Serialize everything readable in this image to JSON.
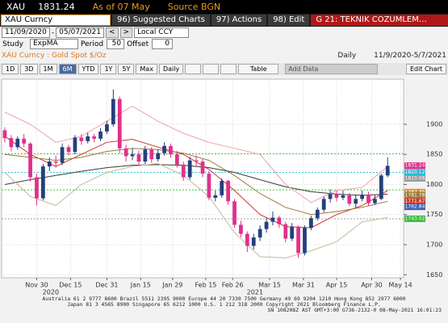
{
  "header": {
    "ticker": "XAU",
    "price": "1831.24",
    "as_of": "As of 07 May",
    "source": "Source BGN"
  },
  "toolbar": {
    "security": "XAU Curncy",
    "buttons": [
      "96) Suggested Charts",
      "97) Actions",
      "98) Edit"
    ],
    "page": "G 21: TEKNIK COZUMLEM…"
  },
  "controls": {
    "start": "11/09/2020",
    "dash": "-",
    "end": "05/07/2021",
    "prev": "<",
    "next": ">",
    "currency": "Local CCY",
    "study_label": "Study",
    "study": "ExpMA",
    "period_label": "Period",
    "period": "50",
    "offset_label": "Offset",
    "offset": "0"
  },
  "info": {
    "name": "XAU Curncy : Gold Spot  $/Oz",
    "frequency": "Daily",
    "range": "11/9/2020-5/7/2021"
  },
  "range_buttons": [
    "1D",
    "3D",
    "1M",
    "6M",
    "YTD",
    "1Y",
    "5Y",
    "Max",
    "Daily"
  ],
  "actions": {
    "table": "Table",
    "add_data": "Add Data",
    "edit_chart": "Edit Chart"
  },
  "chart_data": {
    "type": "candlestick",
    "open": [
      1890,
      1877,
      1862,
      1876,
      1868,
      1812,
      1777,
      1830,
      1838,
      1836,
      1862,
      1854,
      1878,
      1872,
      1880,
      1876,
      1888,
      1900,
      1942,
      1860,
      1847,
      1850,
      1838,
      1858,
      1842,
      1852,
      1864,
      1850,
      1833,
      1812,
      1840,
      1838,
      1818,
      1778,
      1782,
      1806,
      1772,
      1733,
      1718,
      1698,
      1712,
      1726,
      1738,
      1745,
      1734,
      1710,
      1730,
      1686,
      1728,
      1744,
      1758,
      1776,
      1784,
      1778,
      1782,
      1768,
      1776,
      1783,
      1769,
      1776,
      1815
    ],
    "high": [
      1895,
      1882,
      1880,
      1884,
      1870,
      1818,
      1834,
      1845,
      1848,
      1868,
      1866,
      1882,
      1884,
      1886,
      1884,
      1894,
      1906,
      1958,
      1946,
      1866,
      1860,
      1856,
      1864,
      1862,
      1858,
      1870,
      1868,
      1856,
      1838,
      1846,
      1848,
      1842,
      1822,
      1790,
      1810,
      1808,
      1776,
      1740,
      1722,
      1718,
      1732,
      1744,
      1755,
      1748,
      1738,
      1736,
      1732,
      1732,
      1748,
      1762,
      1780,
      1792,
      1790,
      1790,
      1786,
      1782,
      1790,
      1788,
      1782,
      1818,
      1845
    ],
    "low": [
      1870,
      1855,
      1858,
      1862,
      1805,
      1765,
      1774,
      1822,
      1828,
      1832,
      1848,
      1850,
      1866,
      1868,
      1870,
      1872,
      1884,
      1896,
      1852,
      1838,
      1840,
      1832,
      1834,
      1836,
      1838,
      1848,
      1844,
      1828,
      1806,
      1808,
      1830,
      1812,
      1774,
      1772,
      1778,
      1766,
      1728,
      1712,
      1688,
      1692,
      1706,
      1720,
      1732,
      1728,
      1704,
      1706,
      1678,
      1682,
      1724,
      1740,
      1754,
      1770,
      1772,
      1774,
      1764,
      1762,
      1772,
      1764,
      1766,
      1774,
      1812
    ],
    "close": [
      1877,
      1862,
      1876,
      1868,
      1812,
      1777,
      1830,
      1838,
      1836,
      1862,
      1854,
      1878,
      1872,
      1880,
      1876,
      1888,
      1900,
      1942,
      1860,
      1847,
      1850,
      1838,
      1858,
      1842,
      1852,
      1864,
      1850,
      1833,
      1812,
      1840,
      1838,
      1818,
      1778,
      1782,
      1806,
      1772,
      1733,
      1718,
      1698,
      1712,
      1726,
      1738,
      1745,
      1734,
      1710,
      1730,
      1686,
      1728,
      1744,
      1758,
      1776,
      1784,
      1778,
      1782,
      1768,
      1776,
      1783,
      1769,
      1776,
      1815,
      1831
    ],
    "up_color": "#24407c",
    "down_color": "#e0308c",
    "line_x": [
      0,
      4,
      8,
      12,
      16,
      20,
      24,
      28,
      32,
      36,
      40,
      44,
      48,
      52,
      56,
      60
    ],
    "lines": [
      {
        "color": "#d0342c",
        "values": [
          1880,
          1850,
          1830,
          1850,
          1870,
          1875,
          1862,
          1850,
          1825,
          1790,
          1750,
          1730,
          1728,
          1750,
          1765,
          1790
        ]
      },
      {
        "color": "#9a7a3c",
        "values": [
          1850,
          1845,
          1840,
          1845,
          1855,
          1860,
          1858,
          1852,
          1840,
          1815,
          1785,
          1762,
          1750,
          1755,
          1762,
          1772
        ]
      },
      {
        "color": "#3a3a3a",
        "values": [
          1800,
          1808,
          1815,
          1822,
          1828,
          1832,
          1833,
          1832,
          1828,
          1820,
          1808,
          1796,
          1788,
          1784,
          1782,
          1784
        ]
      },
      {
        "color": "#f0a0a8",
        "values": [
          1920,
          1900,
          1870,
          1880,
          1905,
          1930,
          1905,
          1885,
          1870,
          1860,
          1850,
          1800,
          1770,
          1790,
          1795,
          1830
        ]
      },
      {
        "color": "#c8b89a",
        "values": [
          1820,
          1780,
          1765,
          1800,
          1820,
          1830,
          1835,
          1815,
          1780,
          1720,
          1680,
          1678,
          1690,
          1705,
          1738,
          1745
        ]
      }
    ],
    "levels": {
      "values": [
        1851,
        1820,
        1791,
        1743
      ],
      "colors": [
        "#3cc83c",
        "#2cc8d8",
        "#3cc83c",
        "#a0a0a0"
      ]
    },
    "price_tags": {
      "values": [
        1831.24,
        1820.12,
        1810.06,
        1787.35,
        1781.78,
        1771.67,
        1762.84,
        1743.02
      ],
      "colors": [
        "#e0308c",
        "#2cb8d0",
        "#9a9a9a",
        "#e08a20",
        "#9a7a3c",
        "#d0342c",
        "#4060b0",
        "#3cb83c"
      ]
    },
    "xlim": [
      -0.5,
      62.5
    ],
    "xticks": [
      {
        "value": 5,
        "label": "Nov 30"
      },
      {
        "value": 10.3,
        "label": "Dec 15"
      },
      {
        "value": 16,
        "label": "Dec 31"
      },
      {
        "value": 21.3,
        "label": "Jan 15"
      },
      {
        "value": 26.3,
        "label": "Jan 29"
      },
      {
        "value": 31.5,
        "label": "Feb 15"
      },
      {
        "value": 35.7,
        "label": "Feb 26"
      },
      {
        "value": 41.5,
        "label": "Mar 15"
      },
      {
        "value": 46.8,
        "label": "Mar 31"
      },
      {
        "value": 52,
        "label": "Apr 15"
      },
      {
        "value": 57.5,
        "label": "Apr 30"
      },
      {
        "value": 62,
        "label": "May 14"
      }
    ],
    "year_labels": [
      {
        "value": 7.2,
        "label": "2020"
      },
      {
        "value": 39.2,
        "label": "2021"
      }
    ],
    "ylim": [
      1645,
      1975
    ],
    "yticks": [
      1650,
      1700,
      1750,
      1800,
      1850,
      1900
    ],
    "grid": true
  },
  "footer": [
    "Australia 61 2 9777 8600 Brazil 5511 2395 9000 Europe 44 20 7330 7500 Germany 49 69 9204 1210 Hong Kong 852 2977 6000",
    "Japan 81 3 4565 8900 Singapore 65 6212 1000 U.S. 1 212 318 2000 Copyright 2021 Bloomberg Finance L.P.",
    "SN 108208Z AST GMT+3:00 G736-2132-0 08-May-2021 16:01:23"
  ]
}
